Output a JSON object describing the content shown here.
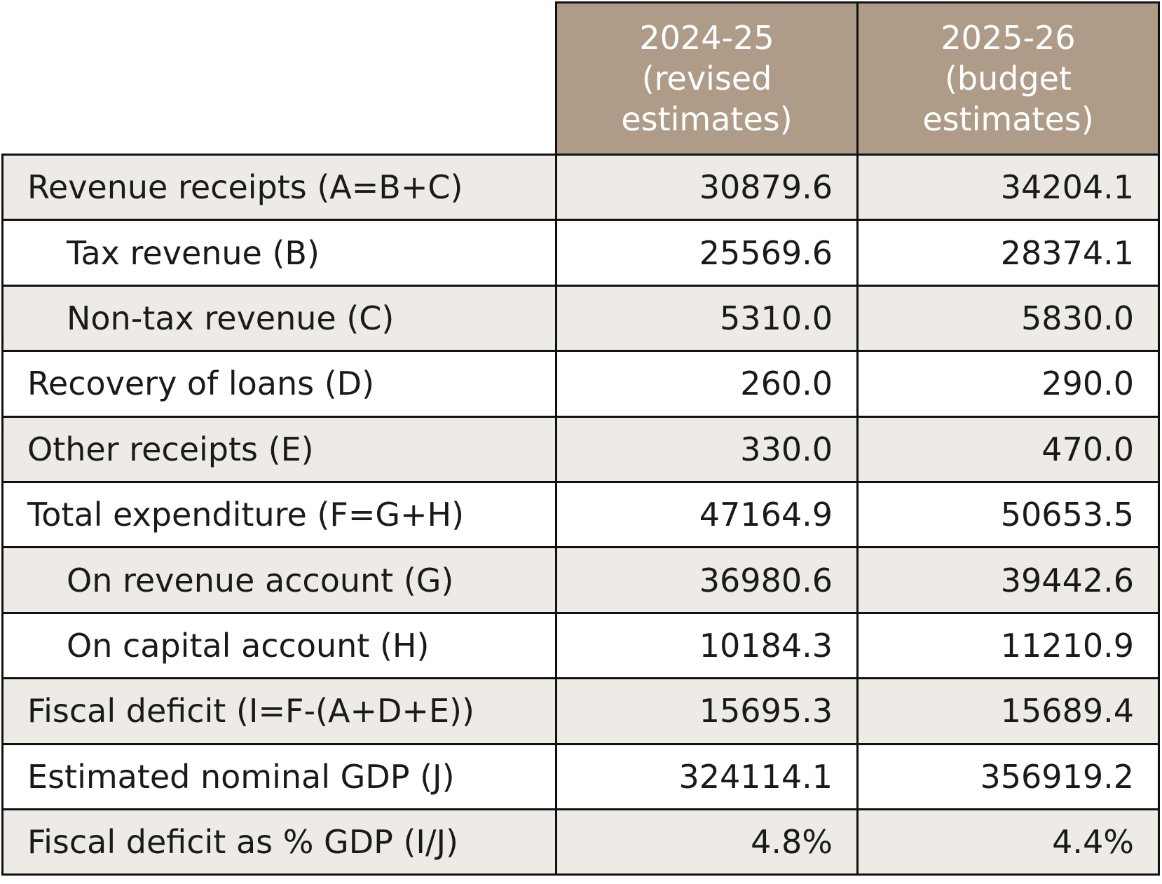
{
  "header": {
    "col1": [
      "2024-25",
      "(revised",
      "estimates)"
    ],
    "col2": [
      "2025-26",
      "(budget",
      "estimates)"
    ]
  },
  "rows": [
    {
      "label": "Revenue receipts (A=B+C)",
      "v1": "30879.6",
      "v2": "34204.1"
    },
    {
      "label": "Tax revenue (B)",
      "v1": "25569.6",
      "v2": "28374.1"
    },
    {
      "label": "Non-tax revenue (C)",
      "v1": "5310.0",
      "v2": "5830.0"
    },
    {
      "label": "Recovery of loans (D)",
      "v1": "260.0",
      "v2": "290.0"
    },
    {
      "label": "Other receipts (E)",
      "v1": "330.0",
      "v2": "470.0"
    },
    {
      "label": "Total expenditure (F=G+H)",
      "v1": "47164.9",
      "v2": "50653.5"
    },
    {
      "label": "On revenue account (G)",
      "v1": "36980.6",
      "v2": "39442.6"
    },
    {
      "label": "On capital account (H)",
      "v1": "10184.3",
      "v2": "11210.9"
    },
    {
      "label": "Fiscal deficit (I=F-(A+D+E))",
      "v1": "15695.3",
      "v2": "15689.4"
    },
    {
      "label": "Estimated nominal GDP (J)",
      "v1": "324114.1",
      "v2": "356919.2"
    },
    {
      "label": "Fiscal deficit as % GDP (I/J)",
      "v1": "4.8%",
      "v2": "4.4%"
    }
  ],
  "colors": {
    "header_bg": "#ae9c88",
    "header_text": "#ffffff",
    "stripe_bg": "#eeebe6",
    "border": "#111111"
  }
}
